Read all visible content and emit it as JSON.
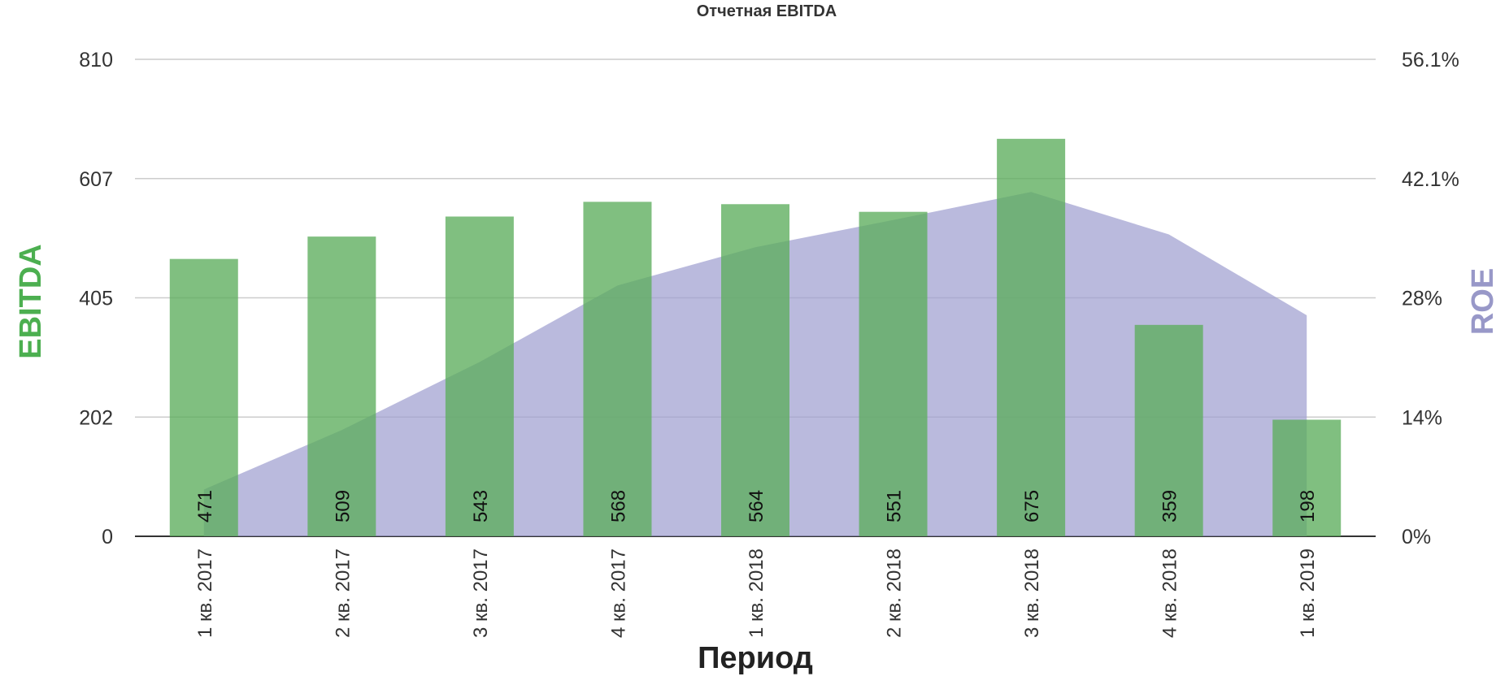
{
  "chart_data": {
    "type": "bar",
    "title": "Отчетная EBITDA",
    "xlabel": "Период",
    "ylabel": "EBITDA",
    "y2label": "ROE",
    "categories": [
      "1 кв. 2017",
      "2 кв. 2017",
      "3 кв. 2017",
      "4 кв. 2017",
      "1 кв. 2018",
      "2 кв. 2018",
      "3 кв. 2018",
      "4 кв. 2018",
      "1 кв. 2019"
    ],
    "series": [
      {
        "name": "EBITDA",
        "type": "bar",
        "axis": "left",
        "values": [
          471,
          509,
          543,
          568,
          564,
          551,
          675,
          359,
          198
        ]
      },
      {
        "name": "ROE",
        "type": "area",
        "axis": "right",
        "values": [
          5.5,
          12.5,
          20.5,
          29.5,
          34.0,
          37.2,
          40.5,
          35.5,
          26.0
        ]
      }
    ],
    "data_labels": [
      "471",
      "509",
      "543",
      "568",
      "564",
      "551",
      "675",
      "359",
      "198"
    ],
    "ylim": [
      0,
      810
    ],
    "y2lim": [
      0,
      56.1
    ],
    "y_ticks": [
      "0",
      "202",
      "405",
      "607",
      "810"
    ],
    "y2_ticks": [
      "0%",
      "14%",
      "28%",
      "42.1%",
      "56.1%"
    ],
    "grid": true,
    "legend": "none",
    "colors": {
      "bar": "#5cad5c",
      "area": "#9f9fd0",
      "left_axis_title": "#4caf50",
      "right_axis_title": "#9898c8"
    }
  }
}
